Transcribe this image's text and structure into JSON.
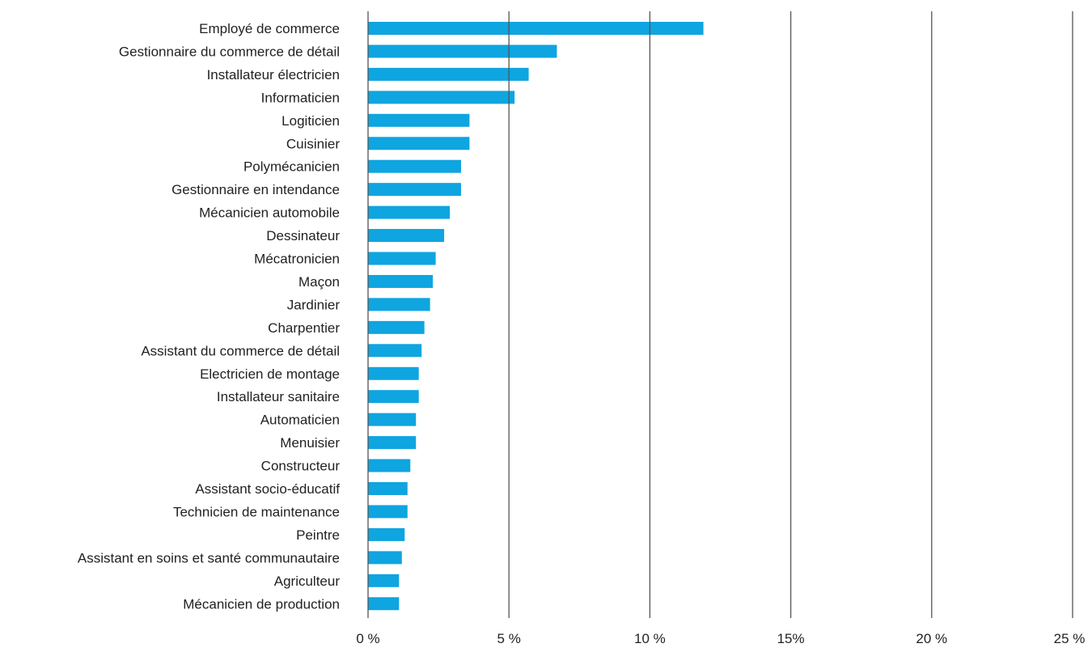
{
  "chart_data": {
    "type": "bar",
    "orientation": "horizontal",
    "categories": [
      "Employé de commerce",
      "Gestionnaire du commerce de détail",
      "Installateur électricien",
      "Informaticien",
      "Logiticien",
      "Cuisinier",
      "Polymécanicien",
      "Gestionnaire en intendance",
      "Mécanicien automobile",
      "Dessinateur",
      "Mécatronicien",
      "Maçon",
      "Jardinier",
      "Charpentier",
      "Assistant du commerce de détail",
      "Electricien de montage",
      "Installateur sanitaire",
      "Automaticien",
      "Menuisier",
      "Constructeur",
      "Assistant socio-éducatif",
      "Technicien de maintenance",
      "Peintre",
      "Assistant en soins et santé communautaire",
      "Agriculteur",
      "Mécanicien de production"
    ],
    "values": [
      11.9,
      6.7,
      5.7,
      5.2,
      3.6,
      3.6,
      3.3,
      3.3,
      2.9,
      2.7,
      2.4,
      2.3,
      2.2,
      2.0,
      1.9,
      1.8,
      1.8,
      1.7,
      1.7,
      1.5,
      1.4,
      1.4,
      1.3,
      1.2,
      1.1,
      1.1
    ],
    "xlim": [
      0,
      25
    ],
    "xticks": [
      0,
      5,
      10,
      15,
      20,
      25
    ],
    "xtick_labels": [
      "0 %",
      "5 %",
      "10 %",
      "15%",
      "20 %",
      "25 %"
    ],
    "title": "",
    "xlabel": "",
    "ylabel": "",
    "grid": "vertical",
    "bar_color": "#0ea5e0",
    "grid_color": "#555555",
    "text_color": "#222222"
  }
}
